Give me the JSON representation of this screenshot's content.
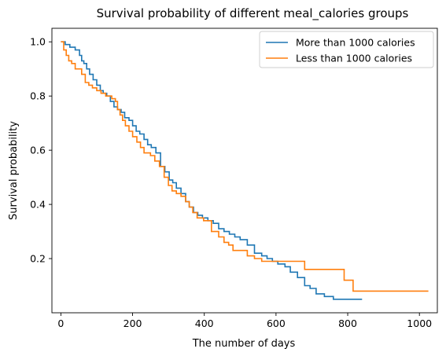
{
  "chart_data": {
    "type": "line",
    "step": true,
    "title": "Survival probability of different meal_calories groups",
    "xlabel": "The number of days",
    "ylabel": "Survival probability",
    "xlim": [
      -25,
      1050
    ],
    "ylim": [
      0.0,
      1.05
    ],
    "xticks": [
      0,
      200,
      400,
      600,
      800,
      1000
    ],
    "yticks": [
      0.2,
      0.4,
      0.6,
      0.8,
      1.0
    ],
    "xtick_labels": [
      "0",
      "200",
      "400",
      "600",
      "800",
      "1000"
    ],
    "ytick_labels": [
      "0.2",
      "0.4",
      "0.6",
      "0.8",
      "1.0"
    ],
    "grid": false,
    "legend_position": "top-right",
    "series": [
      {
        "name": "More than 1000 calories",
        "color": "#1f77b4",
        "x": [
          0,
          12,
          25,
          40,
          52,
          58,
          64,
          72,
          80,
          90,
          100,
          110,
          118,
          128,
          138,
          148,
          158,
          168,
          178,
          190,
          200,
          210,
          220,
          232,
          242,
          252,
          265,
          278,
          290,
          302,
          312,
          322,
          335,
          348,
          358,
          370,
          382,
          395,
          410,
          425,
          440,
          455,
          470,
          485,
          500,
          520,
          540,
          560,
          575,
          590,
          605,
          625,
          640,
          660,
          680,
          695,
          712,
          735,
          760,
          790,
          810,
          840
        ],
        "y": [
          1.0,
          0.99,
          0.98,
          0.97,
          0.95,
          0.93,
          0.92,
          0.9,
          0.88,
          0.86,
          0.84,
          0.82,
          0.81,
          0.8,
          0.78,
          0.76,
          0.75,
          0.74,
          0.72,
          0.71,
          0.69,
          0.67,
          0.66,
          0.64,
          0.62,
          0.61,
          0.59,
          0.54,
          0.52,
          0.49,
          0.48,
          0.46,
          0.44,
          0.41,
          0.39,
          0.37,
          0.36,
          0.35,
          0.34,
          0.33,
          0.31,
          0.3,
          0.29,
          0.28,
          0.27,
          0.25,
          0.22,
          0.21,
          0.2,
          0.19,
          0.18,
          0.17,
          0.15,
          0.13,
          0.1,
          0.09,
          0.07,
          0.06,
          0.05,
          0.05,
          0.05,
          0.05
        ]
      },
      {
        "name": "Less than 1000 calories",
        "color": "#ff7f0e",
        "x": [
          0,
          8,
          15,
          22,
          30,
          40,
          58,
          68,
          78,
          88,
          100,
          112,
          125,
          142,
          152,
          158,
          165,
          172,
          180,
          190,
          200,
          212,
          222,
          232,
          250,
          262,
          275,
          288,
          300,
          310,
          322,
          335,
          348,
          358,
          368,
          380,
          398,
          420,
          440,
          455,
          468,
          480,
          500,
          520,
          540,
          560,
          580,
          600,
          625,
          655,
          680,
          710,
          740,
          760,
          790,
          815,
          1025
        ],
        "y": [
          1.0,
          0.97,
          0.95,
          0.93,
          0.92,
          0.9,
          0.88,
          0.85,
          0.84,
          0.83,
          0.82,
          0.81,
          0.8,
          0.79,
          0.78,
          0.75,
          0.73,
          0.71,
          0.69,
          0.67,
          0.65,
          0.63,
          0.61,
          0.59,
          0.58,
          0.56,
          0.54,
          0.5,
          0.47,
          0.45,
          0.44,
          0.43,
          0.41,
          0.39,
          0.37,
          0.35,
          0.34,
          0.3,
          0.28,
          0.26,
          0.25,
          0.23,
          0.23,
          0.21,
          0.2,
          0.19,
          0.19,
          0.19,
          0.19,
          0.19,
          0.16,
          0.16,
          0.16,
          0.16,
          0.12,
          0.08,
          0.08
        ]
      }
    ]
  }
}
